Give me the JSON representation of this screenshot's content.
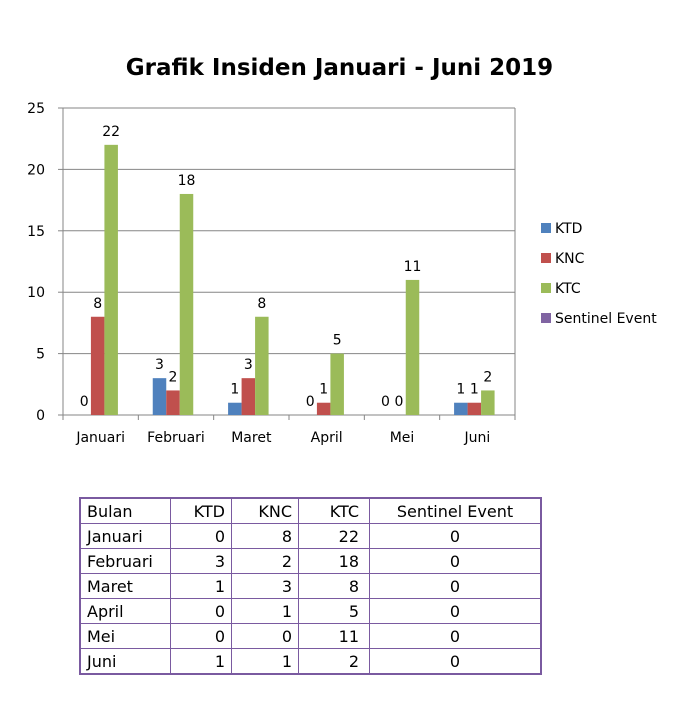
{
  "chart_data": {
    "type": "bar",
    "title": "Grafik Insiden Januari - Juni 2019",
    "categories": [
      "Januari",
      "Februari",
      "Maret",
      "April",
      "Mei",
      "Juni"
    ],
    "series": [
      {
        "name": "KTD",
        "color": "#4f81bd",
        "values": [
          0,
          3,
          1,
          0,
          0,
          1
        ]
      },
      {
        "name": "KNC",
        "color": "#c0504d",
        "values": [
          8,
          2,
          3,
          1,
          0,
          1
        ]
      },
      {
        "name": "KTC",
        "color": "#9bbb59",
        "values": [
          22,
          18,
          8,
          5,
          11,
          2
        ]
      },
      {
        "name": "Sentinel Event",
        "color": "#8064a2",
        "values": [
          0,
          0,
          0,
          0,
          0,
          0
        ]
      }
    ],
    "ylim": [
      0,
      25
    ],
    "yticks": [
      0,
      5,
      10,
      15,
      20,
      25
    ],
    "grid": true,
    "legend_position": "right"
  },
  "table": {
    "headers": [
      "Bulan",
      "KTD",
      "KNC",
      "KTC",
      "Sentinel Event"
    ],
    "rows": [
      [
        "Januari",
        "0",
        "8",
        "22",
        "0"
      ],
      [
        "Februari",
        "3",
        "2",
        "18",
        "0"
      ],
      [
        "Maret",
        "1",
        "3",
        "8",
        "0"
      ],
      [
        "April",
        "0",
        "1",
        "5",
        "0"
      ],
      [
        "Mei",
        "0",
        "0",
        "11",
        "0"
      ],
      [
        "Juni",
        "1",
        "1",
        "2",
        "0"
      ]
    ]
  }
}
